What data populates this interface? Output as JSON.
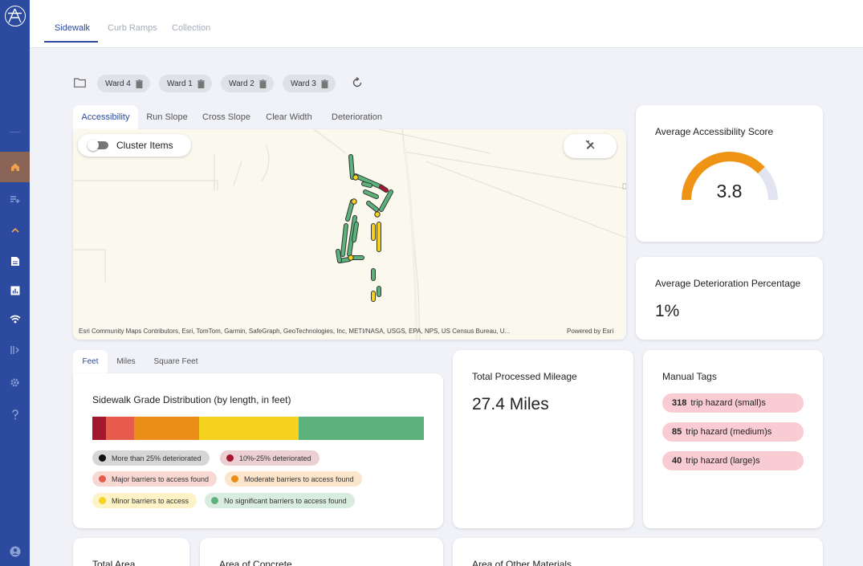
{
  "top_tabs": [
    {
      "label": "Sidewalk"
    },
    {
      "label": "Curb Ramps"
    },
    {
      "label": "Collection"
    }
  ],
  "chips": [
    {
      "label": "Ward 4"
    },
    {
      "label": "Ward 1"
    },
    {
      "label": "Ward 2"
    },
    {
      "label": "Ward 3"
    }
  ],
  "map_tabs": [
    {
      "label": "Accessibility"
    },
    {
      "label": "Run Slope"
    },
    {
      "label": "Cross Slope"
    },
    {
      "label": "Clear Width"
    },
    {
      "label": "Deterioration"
    }
  ],
  "map": {
    "cluster_label": "Cluster Items",
    "attribution": "Esri Community Maps Contributors, Esri, TomTom, Garmin, SafeGraph, GeoTechnologies, Inc, METI/NASA, USGS, EPA, NPS, US Census Bureau, U...",
    "powered_by": "Powered by Esri"
  },
  "accessibility_score": {
    "title": "Average Accessibility Score",
    "value": "3.8",
    "fraction": 0.76,
    "color": "#ef9315"
  },
  "deterioration": {
    "title": "Average Deterioration Percentage",
    "value": "1%"
  },
  "unit_tabs": [
    {
      "label": "Feet"
    },
    {
      "label": "Miles"
    },
    {
      "label": "Square Feet"
    }
  ],
  "grade_distribution": {
    "title": "Sidewalk Grade Distribution (by length, in feet)",
    "segments": [
      {
        "fraction": 0.04,
        "color": "#a3172f"
      },
      {
        "fraction": 0.087,
        "color": "#e85c4d"
      },
      {
        "fraction": 0.195,
        "color": "#ea8e17"
      },
      {
        "fraction": 0.3,
        "color": "#f6d11d"
      },
      {
        "fraction": 0.378,
        "color": "#5bb27a"
      }
    ],
    "legend": [
      {
        "label": "More than 25% deteriorated",
        "dot": "#111111",
        "bg": "#d6d6d6"
      },
      {
        "label": "10%-25% deteriorated",
        "dot": "#a3172f",
        "bg": "#ebcfd2"
      },
      {
        "label": "Major barriers to access found",
        "dot": "#e85c4d",
        "bg": "#f8d8d3"
      },
      {
        "label": "Moderate barriers to access found",
        "dot": "#ea8e17",
        "bg": "#fbe5cb"
      },
      {
        "label": "Minor barriers to access",
        "dot": "#f6d11d",
        "bg": "#fdf3c6"
      },
      {
        "label": "No significant barriers to access found",
        "dot": "#5bb27a",
        "bg": "#d8ecdf"
      }
    ]
  },
  "mileage": {
    "title": "Total Processed Mileage",
    "value": "27.4 Miles"
  },
  "manual_tags": {
    "title": "Manual Tags",
    "items": [
      {
        "count": "318",
        "label": "trip hazard (small)s"
      },
      {
        "count": "85",
        "label": "trip hazard (medium)s"
      },
      {
        "count": "40",
        "label": "trip hazard (large)s"
      }
    ]
  },
  "bottom_cards": [
    {
      "title": "Total Area"
    },
    {
      "title": "Area of Concrete"
    },
    {
      "title": "Area of Other Materials"
    }
  ]
}
